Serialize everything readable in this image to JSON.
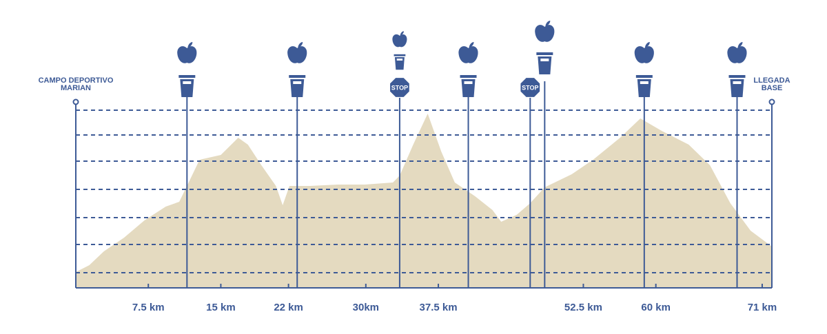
{
  "chart_data": {
    "type": "area",
    "start_label": "CAMPO DEPORTIVO MARIAN",
    "finish_label": "LLEGADA BASE",
    "stop_sign": "STOP",
    "x": [
      0,
      1.4,
      2.9,
      5.0,
      7.1,
      9.3,
      10.7,
      11.5,
      12.8,
      15.0,
      16.8,
      17.8,
      19.2,
      20.7,
      21.4,
      22.1,
      24.2,
      27.1,
      29.9,
      32.8,
      33.5,
      34.9,
      36.4,
      37.8,
      39.2,
      41.3,
      43.1,
      44.0,
      45.6,
      47.0,
      48.5,
      51.3,
      53.5,
      56.3,
      58.4,
      60.6,
      63.4,
      65.6,
      67.7,
      69.8,
      72.0
    ],
    "values": [
      23,
      33,
      53,
      73,
      98,
      118,
      125,
      148,
      186,
      193,
      218,
      208,
      178,
      148,
      120,
      148,
      148,
      150,
      150,
      153,
      163,
      208,
      253,
      198,
      153,
      133,
      113,
      96,
      106,
      123,
      146,
      165,
      186,
      218,
      246,
      228,
      208,
      178,
      123,
      83,
      60
    ],
    "color": "#e4dac0",
    "line_color": "#3d5a96",
    "xlim": [
      0,
      72
    ],
    "ylim": [
      0,
      280
    ],
    "xticks": [
      {
        "value": 7.5,
        "label": "7.5 km"
      },
      {
        "value": 15,
        "label": "15 km"
      },
      {
        "value": 22,
        "label": "22 km"
      },
      {
        "value": 30,
        "label": "30km"
      },
      {
        "value": 37.5,
        "label": "37.5 km"
      },
      {
        "value": 52.5,
        "label": "52.5 km"
      },
      {
        "value": 60,
        "label": "60 km"
      },
      {
        "value": 71,
        "label": "71 km"
      }
    ],
    "stations": [
      11.5,
      22.9,
      33.5,
      40.6,
      47.0,
      48.5,
      58.8,
      68.4
    ]
  }
}
